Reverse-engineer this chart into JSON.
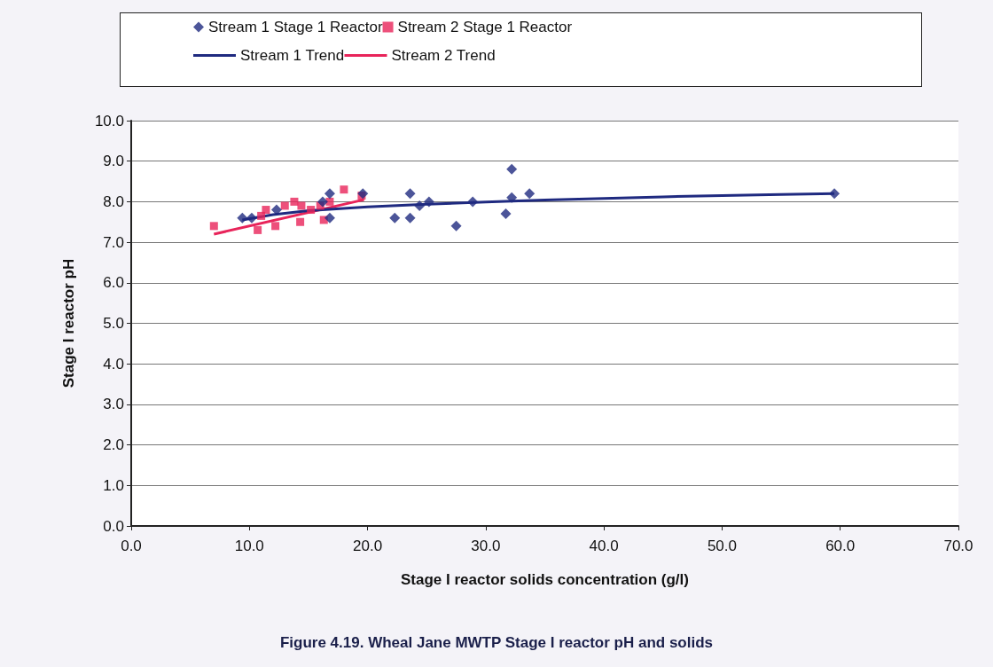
{
  "chart_data": {
    "type": "scatter",
    "title": "Figure 4.19. Wheal Jane MWTP Stage I reactor pH and solids",
    "xlabel": "Stage I reactor solids concentration (g/l)",
    "ylabel": "Stage I reactor pH",
    "xlim": [
      0,
      70
    ],
    "xticks": [
      {
        "value": 0,
        "label": "0.0"
      },
      {
        "value": 10,
        "label": "10.0"
      },
      {
        "value": 20,
        "label": "20.0"
      },
      {
        "value": 30,
        "label": "30.0"
      },
      {
        "value": 40,
        "label": "40.0"
      },
      {
        "value": 50,
        "label": "50.0"
      },
      {
        "value": 60,
        "label": "60.0"
      },
      {
        "value": 70,
        "label": "70.0"
      }
    ],
    "ylim": [
      0,
      10
    ],
    "yticks": [
      {
        "value": 0,
        "label": "0.0"
      },
      {
        "value": 1,
        "label": "1.0"
      },
      {
        "value": 2,
        "label": "2.0"
      },
      {
        "value": 3,
        "label": "3.0"
      },
      {
        "value": 4,
        "label": "4.0"
      },
      {
        "value": 5,
        "label": "5.0"
      },
      {
        "value": 6,
        "label": "6.0"
      },
      {
        "value": 7,
        "label": "7.0"
      },
      {
        "value": 8,
        "label": "8.0"
      },
      {
        "value": 9,
        "label": "9.0"
      },
      {
        "value": 10,
        "label": "10.0"
      }
    ],
    "grid": "y",
    "legend": "top",
    "series": [
      {
        "name": "Stream 1 Stage 1 Reactor",
        "marker": "diamond",
        "color": "#1f2a80",
        "x": [
          9.4,
          10.2,
          12.3,
          16.8,
          16.8,
          16.2,
          19.6,
          23.6,
          22.3,
          23.6,
          24.4,
          25.2,
          27.5,
          28.9,
          32.2,
          32.2,
          31.7,
          33.7,
          59.5
        ],
        "values": [
          7.6,
          7.6,
          7.8,
          8.2,
          7.6,
          8.0,
          8.2,
          8.2,
          7.6,
          7.6,
          7.9,
          8.0,
          7.4,
          8.0,
          8.8,
          8.1,
          7.7,
          8.2,
          8.2
        ]
      },
      {
        "name": "Stream 2 Stage 1 Reactor",
        "marker": "square",
        "color": "#e8245a",
        "x": [
          7.0,
          10.7,
          11.4,
          12.2,
          13.0,
          13.8,
          14.4,
          14.3,
          15.2,
          16.3,
          16.8,
          18.0,
          19.5,
          11.0,
          16.0
        ],
        "values": [
          7.4,
          7.3,
          7.8,
          7.4,
          7.9,
          8.0,
          7.9,
          7.5,
          7.8,
          7.55,
          8.0,
          8.3,
          8.15,
          7.65,
          7.9
        ]
      },
      {
        "name": "Stream 1 Trend",
        "type": "line",
        "marker": "none",
        "color": "#1f2a80",
        "x": [
          9.4,
          12,
          15,
          20,
          25,
          30,
          35,
          40,
          45,
          50,
          55,
          59.5
        ],
        "values": [
          7.55,
          7.68,
          7.78,
          7.87,
          7.94,
          7.99,
          8.04,
          8.08,
          8.12,
          8.15,
          8.18,
          8.2
        ]
      },
      {
        "name": "Stream 2 Trend",
        "type": "line",
        "marker": "none",
        "color": "#e8245a",
        "x": [
          7.0,
          19.7
        ],
        "values": [
          7.2,
          8.05
        ]
      }
    ]
  }
}
